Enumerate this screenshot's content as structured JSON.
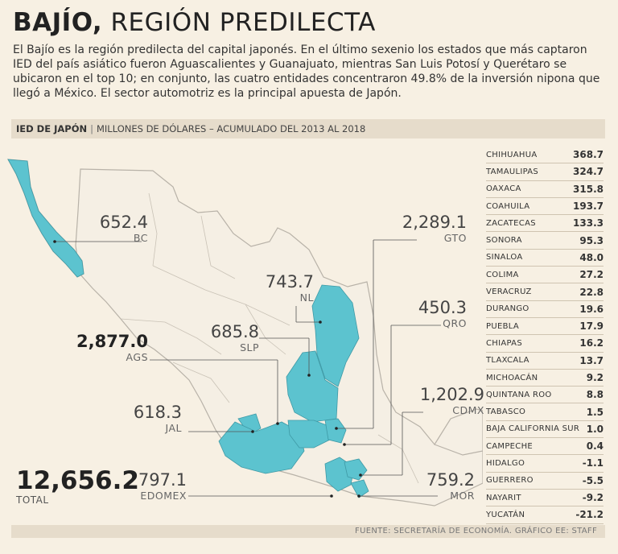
{
  "header": {
    "title_bold": "BAJÍO,",
    "title_rest": "REGIÓN PREDILECTA",
    "intro": "El Bajío es la región predilecta del capital japonés. En el último sexenio los estados que más captaron IED del país asiático fueron Aguascalientes y Guanajuato, mientras San Luis Potosí y Querétaro se ubicaron en el top 10; en conjunto, las cuatro entidades concentraron 49.8% de la inversión nipona que llegó a México. El sector automotriz es la principal apuesta de Japón."
  },
  "band": {
    "label_bold": "IED DE JAPÓN",
    "separator": "|",
    "label_rest": "MILLONES DE DÓLARES – ACUMULADO DEL 2013 AL 2018"
  },
  "map_labels": {
    "bc": {
      "value": "652.4",
      "name": "BC"
    },
    "ags": {
      "value": "2,877.0",
      "name": "AGS"
    },
    "slp": {
      "value": "685.8",
      "name": "SLP"
    },
    "nl": {
      "value": "743.7",
      "name": "NL"
    },
    "gto": {
      "value": "2,289.1",
      "name": "GTO"
    },
    "qro": {
      "value": "450.3",
      "name": "QRO"
    },
    "jal": {
      "value": "618.3",
      "name": "JAL"
    },
    "cdmx": {
      "value": "1,202.9",
      "name": "CDMX"
    },
    "edomex": {
      "value": "797.1",
      "name": "EDOMEX"
    },
    "mor": {
      "value": "759.2",
      "name": "MOR"
    }
  },
  "total": {
    "value": "12,656.2",
    "label": "TOTAL"
  },
  "table": {
    "rows": [
      {
        "state": "CHIHUAHUA",
        "value": "368.7"
      },
      {
        "state": "TAMAULIPAS",
        "value": "324.7"
      },
      {
        "state": "OAXACA",
        "value": "315.8"
      },
      {
        "state": "COAHUILA",
        "value": "193.7"
      },
      {
        "state": "ZACATECAS",
        "value": "133.3"
      },
      {
        "state": "SONORA",
        "value": "95.3"
      },
      {
        "state": "SINALOA",
        "value": "48.0"
      },
      {
        "state": "COLIMA",
        "value": "27.2"
      },
      {
        "state": "VERACRUZ",
        "value": "22.8"
      },
      {
        "state": "DURANGO",
        "value": "19.6"
      },
      {
        "state": "PUEBLA",
        "value": "17.9"
      },
      {
        "state": "CHIAPAS",
        "value": "16.2"
      },
      {
        "state": "TLAXCALA",
        "value": "13.7"
      },
      {
        "state": "MICHOACÁN",
        "value": "9.2"
      },
      {
        "state": "QUINTANA ROO",
        "value": "8.8"
      },
      {
        "state": "TABASCO",
        "value": "1.5"
      },
      {
        "state": "BAJA CALIFORNIA SUR",
        "value": "1.0"
      },
      {
        "state": "CAMPECHE",
        "value": "0.4"
      },
      {
        "state": "HIDALGO",
        "value": "-1.1"
      },
      {
        "state": "GUERRERO",
        "value": "-5.5"
      },
      {
        "state": "NAYARIT",
        "value": "-9.2"
      },
      {
        "state": "YUCATÁN",
        "value": "-21.2"
      }
    ]
  },
  "source": "FUENTE: SECRETARÍA DE ECONOMÍA. GRÁFICO EE: STAFF",
  "colors": {
    "highlight": "#5cc3cf",
    "land": "#f5efe4",
    "border": "#b8b2a8",
    "leader": "#555555"
  },
  "chart_data": {
    "type": "table",
    "title": "IED DE JAPÓN",
    "subtitle": "MILLONES DE DÓLARES – ACUMULADO DEL 2013 AL 2018",
    "highlighted_states": [
      {
        "name": "BC",
        "value": 652.4
      },
      {
        "name": "AGS",
        "value": 2877.0
      },
      {
        "name": "SLP",
        "value": 685.8
      },
      {
        "name": "NL",
        "value": 743.7
      },
      {
        "name": "GTO",
        "value": 2289.1
      },
      {
        "name": "QRO",
        "value": 450.3
      },
      {
        "name": "JAL",
        "value": 618.3
      },
      {
        "name": "CDMX",
        "value": 1202.9
      },
      {
        "name": "EDOMEX",
        "value": 797.1
      },
      {
        "name": "MOR",
        "value": 759.2
      }
    ],
    "total": 12656.2,
    "other_states": [
      {
        "name": "CHIHUAHUA",
        "value": 368.7
      },
      {
        "name": "TAMAULIPAS",
        "value": 324.7
      },
      {
        "name": "OAXACA",
        "value": 315.8
      },
      {
        "name": "COAHUILA",
        "value": 193.7
      },
      {
        "name": "ZACATECAS",
        "value": 133.3
      },
      {
        "name": "SONORA",
        "value": 95.3
      },
      {
        "name": "SINALOA",
        "value": 48.0
      },
      {
        "name": "COLIMA",
        "value": 27.2
      },
      {
        "name": "VERACRUZ",
        "value": 22.8
      },
      {
        "name": "DURANGO",
        "value": 19.6
      },
      {
        "name": "PUEBLA",
        "value": 17.9
      },
      {
        "name": "CHIAPAS",
        "value": 16.2
      },
      {
        "name": "TLAXCALA",
        "value": 13.7
      },
      {
        "name": "MICHOACÁN",
        "value": 9.2
      },
      {
        "name": "QUINTANA ROO",
        "value": 8.8
      },
      {
        "name": "TABASCO",
        "value": 1.5
      },
      {
        "name": "BAJA CALIFORNIA SUR",
        "value": 1.0
      },
      {
        "name": "CAMPECHE",
        "value": 0.4
      },
      {
        "name": "HIDALGO",
        "value": -1.1
      },
      {
        "name": "GUERRERO",
        "value": -5.5
      },
      {
        "name": "NAYARIT",
        "value": -9.2
      },
      {
        "name": "YUCATÁN",
        "value": -21.2
      }
    ]
  }
}
